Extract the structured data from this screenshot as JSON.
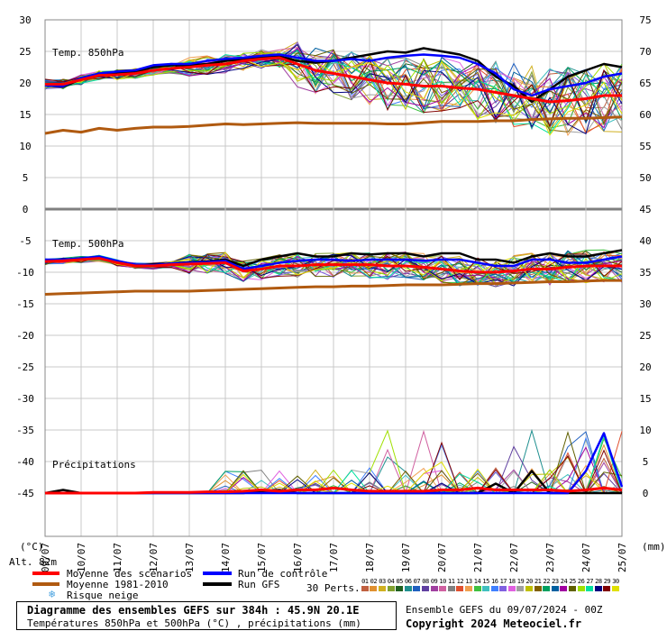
{
  "chart_data": {
    "type": "line",
    "title": "Diagramme des ensembles GEFS sur 384h : 45.9N 20.1E",
    "subtitle": "Températures 850hPa et 500hPa (°C) , précipitations (mm)",
    "run_info": "Ensemble GEFS du 09/07/2024 - 00Z",
    "copyright": "Copyright 2024 Meteociel.fr",
    "altitude": "Alt. 82m",
    "left_unit": "(°C)",
    "right_unit": "(mm)",
    "panel_labels": [
      "Temp. 850hPa",
      "Temp. 500hPa",
      "Précipitations"
    ],
    "left_ticks": [
      "30",
      "25",
      "20",
      "15",
      "10",
      "5",
      "0",
      "-5",
      "-10",
      "-15",
      "-20",
      "-25",
      "-30",
      "-35",
      "-40",
      "-45"
    ],
    "right_ticks": [
      "75",
      "70",
      "65",
      "60",
      "55",
      "50",
      "45",
      "40",
      "35",
      "30",
      "25",
      "20",
      "15",
      "10",
      "5",
      "0"
    ],
    "x_labels": [
      "09/07",
      "10/07",
      "11/07",
      "12/07",
      "13/07",
      "14/07",
      "15/07",
      "16/07",
      "17/07",
      "18/07",
      "19/07",
      "20/07",
      "21/07",
      "22/07",
      "23/07",
      "24/07",
      "25/07"
    ],
    "ylim": [
      -45,
      30
    ],
    "legend": [
      {
        "label": "Moyenne des scénarios",
        "color": "#ff0000"
      },
      {
        "label": "Moyenne 1981-2010",
        "color": "#b05a10"
      },
      {
        "label": "Risque neige",
        "color": "#4aa3e0",
        "icon": "snowflake-icon"
      },
      {
        "label": "Run de contrôle",
        "color": "#0000ff"
      },
      {
        "label": "Run GFS",
        "color": "#000000"
      }
    ],
    "perturbations_label": "30 Perts.",
    "perturbations": [
      {
        "id": "01",
        "color": "#c06040"
      },
      {
        "id": "02",
        "color": "#e09030"
      },
      {
        "id": "03",
        "color": "#d0b020"
      },
      {
        "id": "04",
        "color": "#80a030"
      },
      {
        "id": "05",
        "color": "#206020"
      },
      {
        "id": "06",
        "color": "#209090"
      },
      {
        "id": "07",
        "color": "#2060c0"
      },
      {
        "id": "08",
        "color": "#6040a0"
      },
      {
        "id": "09",
        "color": "#a040a0"
      },
      {
        "id": "10",
        "color": "#d060a0"
      },
      {
        "id": "11",
        "color": "#808080"
      },
      {
        "id": "12",
        "color": "#e05030"
      },
      {
        "id": "13",
        "color": "#f0a050"
      },
      {
        "id": "14",
        "color": "#40c040"
      },
      {
        "id": "15",
        "color": "#40c0c0"
      },
      {
        "id": "16",
        "color": "#4080ff"
      },
      {
        "id": "17",
        "color": "#8060e0"
      },
      {
        "id": "18",
        "color": "#e060e0"
      },
      {
        "id": "19",
        "color": "#a0a0a0"
      },
      {
        "id": "20",
        "color": "#c0c000"
      },
      {
        "id": "21",
        "color": "#806000"
      },
      {
        "id": "22",
        "color": "#00a060"
      },
      {
        "id": "23",
        "color": "#0060a0"
      },
      {
        "id": "24",
        "color": "#a000a0"
      },
      {
        "id": "25",
        "color": "#606000"
      },
      {
        "id": "26",
        "color": "#a0e000"
      },
      {
        "id": "27",
        "color": "#00e0a0"
      },
      {
        "id": "28",
        "color": "#000080"
      },
      {
        "id": "29",
        "color": "#800000"
      },
      {
        "id": "30",
        "color": "#e0e000"
      }
    ],
    "series": [
      {
        "name": "Moyenne des scénarios",
        "panel": "850hPa",
        "color": "#ff0000",
        "values": [
          19.8,
          19.8,
          20.5,
          21.2,
          21.3,
          21.5,
          22.0,
          22.3,
          22.5,
          22.8,
          23.0,
          23.5,
          23.8,
          24.0,
          23.0,
          22.0,
          21.5,
          21.0,
          20.5,
          20.0,
          19.8,
          19.5,
          19.5,
          19.2,
          19.0,
          18.5,
          18.0,
          17.5,
          17.0,
          17.2,
          17.5,
          18.0,
          18.0
        ]
      },
      {
        "name": "Run de contrôle",
        "panel": "850hPa",
        "color": "#0000ff",
        "values": [
          19.6,
          19.5,
          20.8,
          21.5,
          21.8,
          22.0,
          22.8,
          23.0,
          23.0,
          23.5,
          23.8,
          24.0,
          24.3,
          24.5,
          24.0,
          23.5,
          23.5,
          23.8,
          23.5,
          24.0,
          24.3,
          24.5,
          24.3,
          24.0,
          23.0,
          21.5,
          19.0,
          18.0,
          19.0,
          19.5,
          20.0,
          21.0,
          21.5
        ]
      },
      {
        "name": "Run GFS",
        "panel": "850hPa",
        "color": "#000000",
        "values": [
          19.6,
          19.4,
          20.6,
          21.3,
          21.6,
          21.8,
          22.5,
          22.8,
          22.8,
          23.0,
          23.5,
          23.8,
          24.0,
          24.2,
          23.5,
          23.2,
          23.5,
          24.0,
          24.5,
          25.0,
          24.8,
          25.5,
          25.0,
          24.5,
          23.5,
          21.0,
          19.5,
          17.0,
          19.0,
          21.0,
          22.0,
          23.0,
          22.5
        ]
      },
      {
        "name": "Moyenne 1981-2010",
        "panel": "850hPa",
        "color": "#b05a10",
        "values": [
          12.0,
          12.5,
          12.2,
          12.8,
          12.5,
          12.8,
          13.0,
          13.0,
          13.1,
          13.3,
          13.5,
          13.4,
          13.5,
          13.6,
          13.7,
          13.6,
          13.6,
          13.6,
          13.6,
          13.5,
          13.5,
          13.7,
          13.9,
          13.9,
          13.9,
          14.0,
          14.0,
          14.2,
          14.3,
          14.4,
          14.4,
          14.5,
          14.6
        ]
      },
      {
        "name": "Moyenne des scénarios",
        "panel": "500hPa",
        "color": "#ff0000",
        "values": [
          -8.3,
          -8.2,
          -8.0,
          -7.8,
          -8.5,
          -9.0,
          -9.0,
          -8.8,
          -8.7,
          -8.6,
          -8.5,
          -9.8,
          -9.5,
          -9.0,
          -9.0,
          -8.8,
          -8.8,
          -8.8,
          -8.8,
          -9.0,
          -9.0,
          -9.2,
          -9.5,
          -9.8,
          -10.0,
          -10.0,
          -9.8,
          -9.5,
          -9.5,
          -9.2,
          -9.0,
          -9.0,
          -9.0
        ]
      },
      {
        "name": "Run de contrôle",
        "panel": "500hPa",
        "color": "#0000ff",
        "values": [
          -8.0,
          -8.0,
          -7.8,
          -7.5,
          -8.2,
          -8.8,
          -8.9,
          -8.6,
          -8.5,
          -8.4,
          -8.2,
          -9.5,
          -9.0,
          -8.5,
          -8.2,
          -8.0,
          -8.0,
          -8.2,
          -8.0,
          -8.0,
          -8.0,
          -8.2,
          -8.0,
          -8.0,
          -8.5,
          -9.0,
          -9.0,
          -8.0,
          -8.0,
          -8.5,
          -8.5,
          -8.0,
          -7.5
        ]
      },
      {
        "name": "Run GFS",
        "panel": "500hPa",
        "color": "#000000",
        "values": [
          -8.1,
          -8.0,
          -7.8,
          -7.6,
          -8.3,
          -8.8,
          -8.8,
          -8.6,
          -8.4,
          -8.3,
          -8.0,
          -9.0,
          -8.0,
          -7.5,
          -7.0,
          -7.5,
          -7.5,
          -7.0,
          -7.2,
          -7.0,
          -7.0,
          -7.5,
          -7.0,
          -7.0,
          -8.0,
          -8.0,
          -8.5,
          -7.5,
          -7.0,
          -7.5,
          -7.5,
          -7.0,
          -6.5
        ]
      },
      {
        "name": "Moyenne 1981-2010",
        "panel": "500hPa",
        "color": "#b05a10",
        "values": [
          -13.5,
          -13.4,
          -13.3,
          -13.2,
          -13.1,
          -13.0,
          -13.0,
          -13.0,
          -13.0,
          -12.9,
          -12.8,
          -12.7,
          -12.6,
          -12.5,
          -12.4,
          -12.3,
          -12.3,
          -12.2,
          -12.2,
          -12.1,
          -12.0,
          -12.0,
          -12.0,
          -11.9,
          -11.8,
          -11.8,
          -11.7,
          -11.6,
          -11.5,
          -11.5,
          -11.4,
          -11.3,
          -11.3
        ]
      },
      {
        "name": "Moyenne des scénarios",
        "panel": "precip",
        "color": "#ff0000",
        "values": [
          0,
          0,
          0,
          0,
          0,
          0,
          0.1,
          0.1,
          0.1,
          0.2,
          0.2,
          0.3,
          0.5,
          0.3,
          0.5,
          0.5,
          0.8,
          0.5,
          0.3,
          0.3,
          0.3,
          0.3,
          0.5,
          0.5,
          0.8,
          0.5,
          0.5,
          0.5,
          0.5,
          0.3,
          0.5,
          0.8,
          0.5
        ]
      },
      {
        "name": "Run de contrôle",
        "panel": "precip",
        "color": "#0000ff",
        "values": [
          0,
          0,
          0,
          0,
          0,
          0,
          0,
          0,
          0,
          0,
          0,
          0,
          0,
          0,
          0,
          0,
          0,
          0,
          0,
          0,
          0,
          0,
          0,
          0,
          0,
          0,
          0,
          0,
          0,
          0,
          3.5,
          9.5,
          1.0
        ]
      },
      {
        "name": "Run GFS",
        "panel": "precip",
        "color": "#000000",
        "values": [
          0,
          0.5,
          0,
          0,
          0,
          0,
          0,
          0,
          0,
          0,
          0,
          0,
          0.3,
          0.5,
          0,
          0,
          0,
          0,
          0,
          0,
          0,
          0,
          0,
          0,
          0,
          1.5,
          0,
          3.5,
          0,
          0,
          0,
          0,
          0
        ]
      }
    ]
  }
}
